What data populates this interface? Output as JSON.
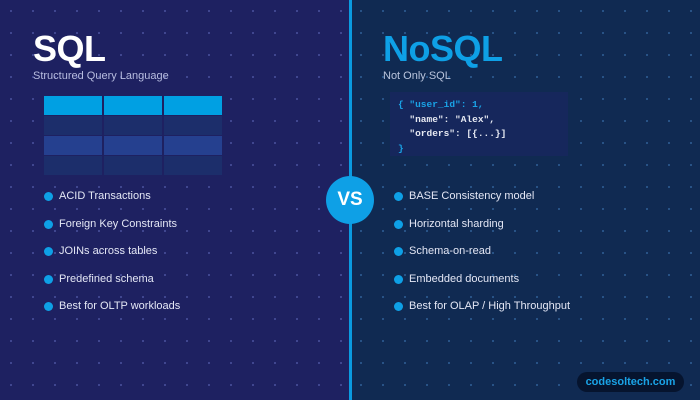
{
  "sql": {
    "title": "SQL",
    "subtitle": "Structured Query Language",
    "table_icon": "table-grid-icon",
    "features": [
      "ACID Transactions",
      "Foreign Key Constraints",
      "JOINs across tables",
      "Predefined schema",
      "Best for OLTP workloads"
    ]
  },
  "nosql": {
    "title": "NoSQL",
    "subtitle": "Not Only SQL",
    "code": {
      "line1_open": "{ ",
      "line1_key": "\"user_id\": 1,",
      "line2": "  \"name\": \"Alex\",",
      "line3": "  \"orders\": [{...}]",
      "line4": "}"
    },
    "features": [
      "BASE Consistency model",
      "Horizontal sharding",
      "Schema-on-read",
      "Embedded documents",
      "Best for OLAP / High Throughput"
    ]
  },
  "vs_label": "VS",
  "footer_badge": "codesoltech.com",
  "colors": {
    "accent": "#0ea0e6",
    "left_bg": "#1e2161",
    "right_bg": "#102a52"
  }
}
